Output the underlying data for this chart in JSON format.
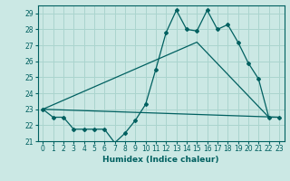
{
  "xlabel": "Humidex (Indice chaleur)",
  "background_color": "#cbe8e4",
  "grid_color": "#aad4ce",
  "line_color": "#006060",
  "xlim": [
    -0.5,
    23.5
  ],
  "ylim": [
    21,
    29.5
  ],
  "yticks": [
    21,
    22,
    23,
    24,
    25,
    26,
    27,
    28,
    29
  ],
  "xticks": [
    0,
    1,
    2,
    3,
    4,
    5,
    6,
    7,
    8,
    9,
    10,
    11,
    12,
    13,
    14,
    15,
    16,
    17,
    18,
    19,
    20,
    21,
    22,
    23
  ],
  "line1_x": [
    0,
    1,
    2,
    3,
    4,
    5,
    6,
    7,
    8,
    9,
    10,
    11,
    12,
    13,
    14,
    15,
    16,
    17,
    18,
    19,
    20,
    21,
    22,
    23
  ],
  "line1_y": [
    23.0,
    22.5,
    22.5,
    21.75,
    21.75,
    21.75,
    21.75,
    20.9,
    21.5,
    22.3,
    23.3,
    25.5,
    27.8,
    29.2,
    28.0,
    27.9,
    29.2,
    28.0,
    28.3,
    27.2,
    25.9,
    24.9,
    22.5,
    22.5
  ],
  "line2_x": [
    0,
    23
  ],
  "line2_y": [
    23.0,
    22.5
  ],
  "line3_x": [
    0,
    15,
    22
  ],
  "line3_y": [
    23.0,
    27.2,
    22.5
  ]
}
